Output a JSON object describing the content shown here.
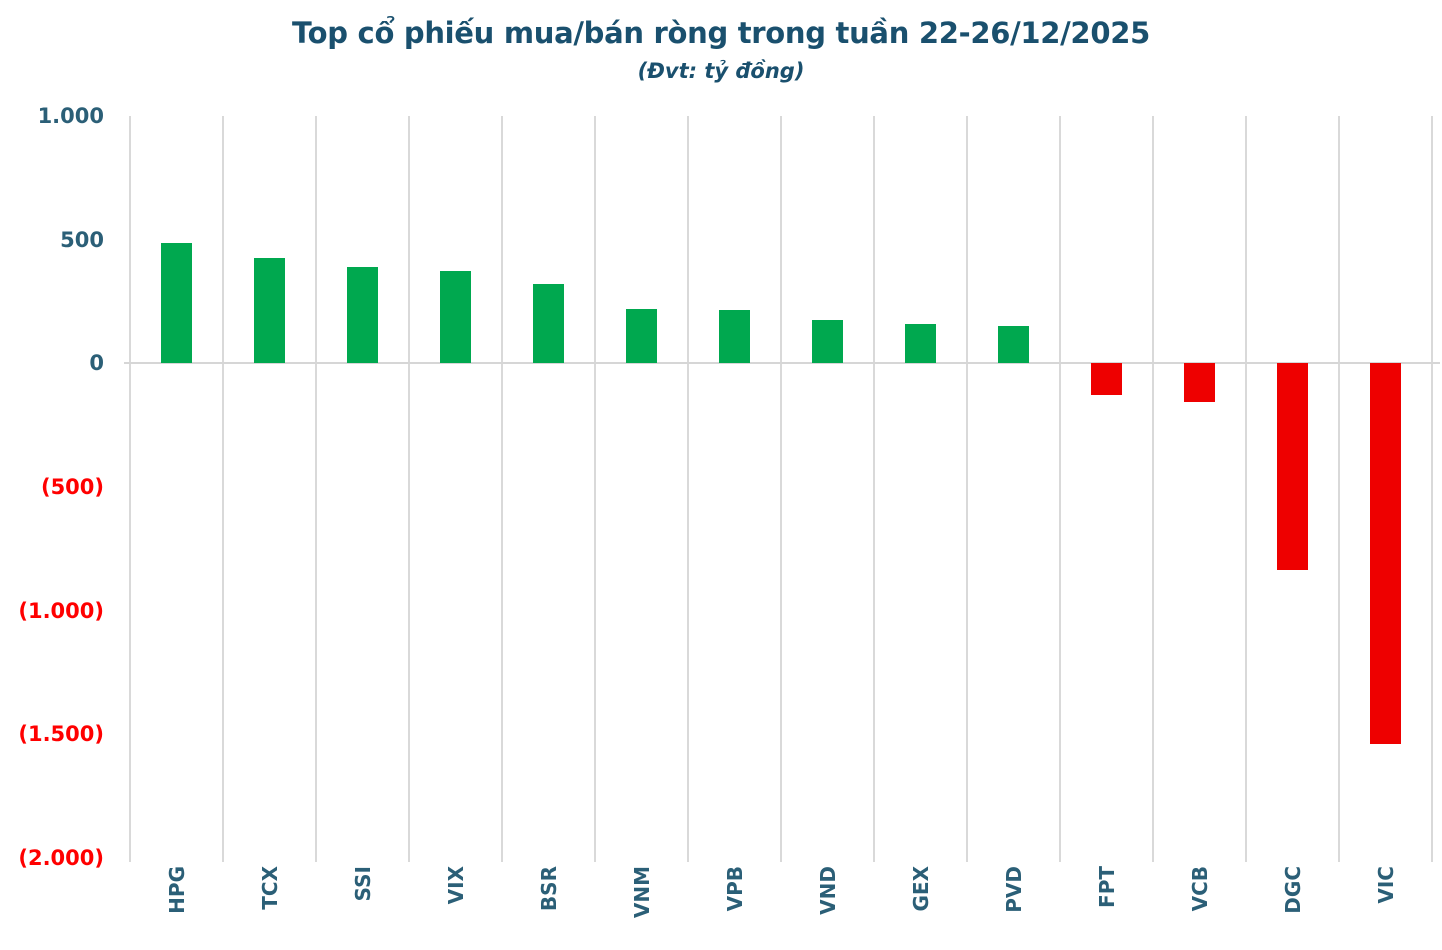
{
  "header": {
    "title": "Top cổ phiếu mua/bán ròng trong tuần 22-26/12/2025",
    "subtitle": "(Đvt: tỷ đồng)"
  },
  "colors": {
    "title": "#1A506E",
    "axis_label": "#2B5F77",
    "negative_tick": "#FF0000",
    "gridline": "#D9D9D9",
    "bar_positive": "#00A84F",
    "bar_negative": "#EE0000",
    "background": "#FFFFFF"
  },
  "chart_data": {
    "type": "bar",
    "title": "Top cổ phiếu mua/bán ròng trong tuần 22-26/12/2025",
    "subtitle": "(Đvt: tỷ đồng)",
    "unit": "tỷ đồng",
    "categories": [
      "HPG",
      "TCX",
      "SSI",
      "VIX",
      "BSR",
      "VNM",
      "VPB",
      "VND",
      "GEX",
      "PVD",
      "FPT",
      "VCB",
      "DGC",
      "VIC"
    ],
    "values": [
      485,
      425,
      390,
      375,
      320,
      220,
      215,
      175,
      160,
      150,
      -130,
      -155,
      -835,
      -1540
    ],
    "ylim": [
      -2000,
      1000
    ],
    "yticks": [
      {
        "value": 1000,
        "label": "1.000"
      },
      {
        "value": 500,
        "label": "500"
      },
      {
        "value": 0,
        "label": "0"
      },
      {
        "value": -500,
        "label": "(500)"
      },
      {
        "value": -1000,
        "label": "(1.000)"
      },
      {
        "value": -1500,
        "label": "(1.500)"
      },
      {
        "value": -2000,
        "label": "(2.000)"
      }
    ],
    "grid": "vertical-only",
    "legend": "none",
    "bar_color_rule": "positive green, negative red",
    "tick_color_rule": "positive dark blue, negative red in parentheses"
  }
}
